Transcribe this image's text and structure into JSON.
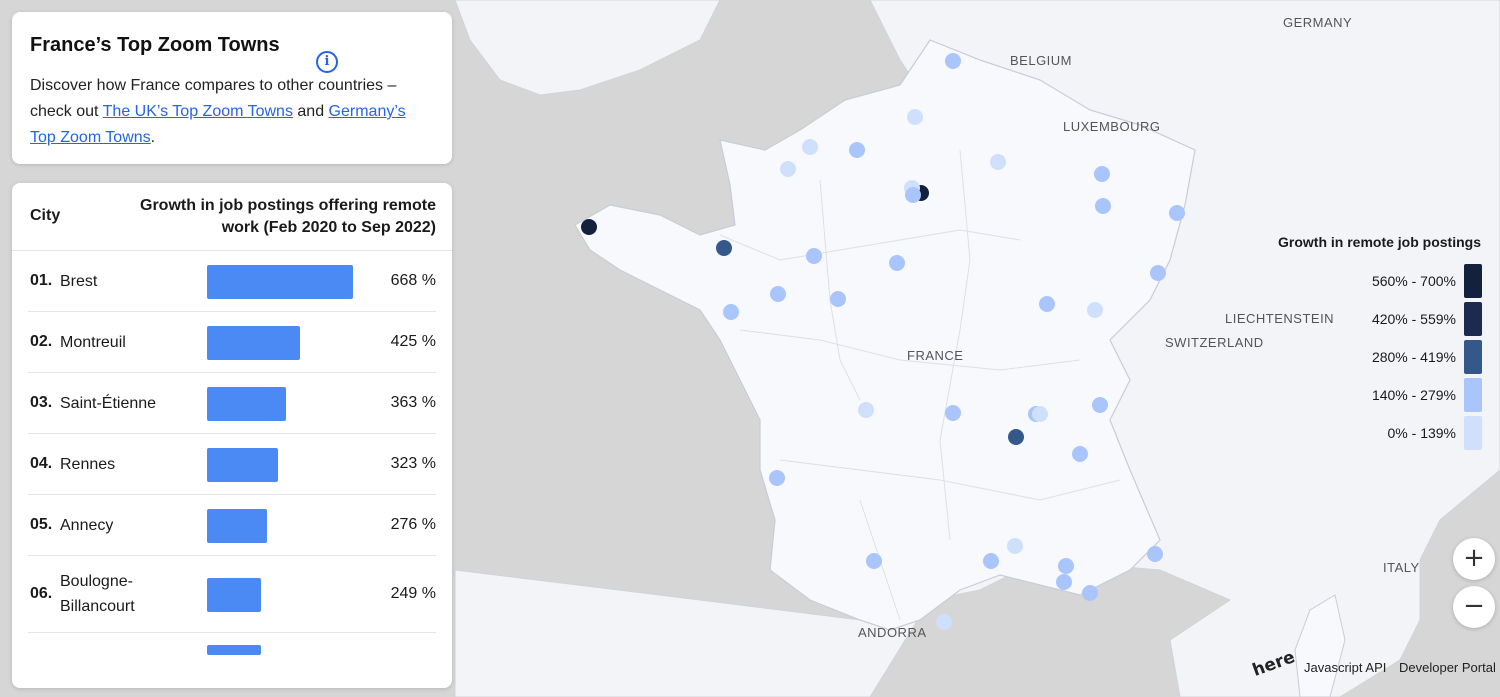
{
  "info": {
    "title": "France’s Top Zoom Towns",
    "text_before": "Discover how France compares to other countries – check out ",
    "link_uk": "The UK’s Top Zoom Towns",
    "text_and": " and ",
    "link_de": "Germany’s Top Zoom Towns",
    "text_end": "."
  },
  "table": {
    "col_city": "City",
    "col_growth": "Growth in job postings offering remote work (Feb 2020 to Sep 2022)",
    "rows": [
      {
        "rank": "01.",
        "city": "Brest",
        "pct_label": "668 %",
        "value": 668
      },
      {
        "rank": "02.",
        "city": "Montreuil",
        "pct_label": "425 %",
        "value": 425
      },
      {
        "rank": "03.",
        "city": "Saint-Étienne",
        "pct_label": "363 %",
        "value": 363
      },
      {
        "rank": "04.",
        "city": "Rennes",
        "pct_label": "323 %",
        "value": 323
      },
      {
        "rank": "05.",
        "city": "Annecy",
        "pct_label": "276 %",
        "value": 276
      },
      {
        "rank": "06.",
        "city": "Boulogne-Billancourt",
        "pct_label": "249 %",
        "value": 249
      }
    ]
  },
  "legend": {
    "title": "Growth in remote job postings",
    "items": [
      {
        "label": "560% - 700%",
        "color": "#14213d"
      },
      {
        "label": "420% - 559%",
        "color": "#1b2a4e"
      },
      {
        "label": "280% - 419%",
        "color": "#34588a"
      },
      {
        "label": "140% - 279%",
        "color": "#a9c5fb"
      },
      {
        "label": "0% - 139%",
        "color": "#cfe0fc"
      }
    ]
  },
  "map": {
    "labels": [
      "GERMANY",
      "BELGIUM",
      "LUXEMBOURG",
      "FRANCE",
      "LIECHTENSTEIN",
      "SWITZERLAND",
      "ITALY",
      "ANDORRA"
    ],
    "colors": {
      "land": "#f8f9fc",
      "neighbor": "#f3f4f7",
      "sea": "#d6d6d6",
      "border": "#d0d3da"
    }
  },
  "controls": {
    "zoom_in": "+",
    "zoom_out": "−"
  },
  "attribution": {
    "logo": "here",
    "link1": "Javascript API",
    "link2": "Developer Portal"
  }
}
